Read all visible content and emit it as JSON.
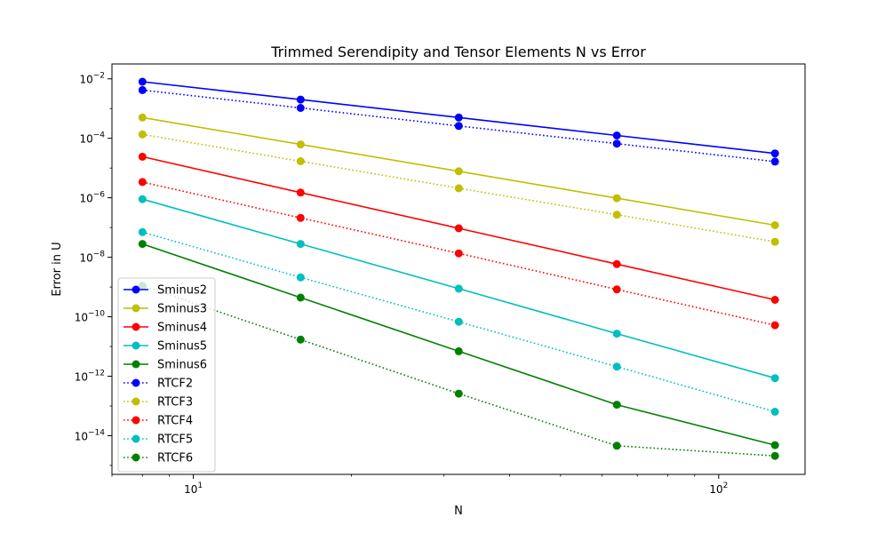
{
  "chart_data": {
    "type": "line",
    "title": "Trimmed Serendipity and Tensor Elements N vs Error",
    "xlabel": "N",
    "ylabel": "Error in U",
    "xscale": "log",
    "yscale": "log",
    "xlim": [
      7.0,
      146
    ],
    "ylim_exp": [
      -15.3,
      -1.5
    ],
    "grid": false,
    "legend_position": "lower-left",
    "x": [
      8,
      16,
      32,
      64,
      128
    ],
    "x_ticks": [
      {
        "value": 10,
        "base": "10",
        "exp": "1"
      },
      {
        "value": 100,
        "base": "10",
        "exp": "2"
      }
    ],
    "y_ticks": [
      {
        "exp": -2,
        "base": "10",
        "label_exp": "−2"
      },
      {
        "exp": -4,
        "base": "10",
        "label_exp": "−4"
      },
      {
        "exp": -6,
        "base": "10",
        "label_exp": "−6"
      },
      {
        "exp": -8,
        "base": "10",
        "label_exp": "−8"
      },
      {
        "exp": -10,
        "base": "10",
        "label_exp": "−10"
      },
      {
        "exp": -12,
        "base": "10",
        "label_exp": "−12"
      },
      {
        "exp": -14,
        "base": "10",
        "label_exp": "−14"
      }
    ],
    "series": [
      {
        "name": "Sminus2",
        "color": "#0000ff",
        "style": "solid",
        "values": [
          0.008,
          0.002,
          0.0005,
          0.000125,
          3.1e-05
        ]
      },
      {
        "name": "Sminus3",
        "color": "#bfbf00",
        "style": "solid",
        "values": [
          0.0005,
          6.2e-05,
          7.8e-06,
          9.7e-07,
          1.2e-07
        ]
      },
      {
        "name": "Sminus4",
        "color": "#ff0000",
        "style": "solid",
        "values": [
          2.4e-05,
          1.5e-06,
          9.4e-08,
          5.9e-09,
          3.7e-10
        ]
      },
      {
        "name": "Sminus5",
        "color": "#00bfbf",
        "style": "solid",
        "values": [
          9e-07,
          2.8e-08,
          8.8e-10,
          2.7e-11,
          8.6e-13
        ]
      },
      {
        "name": "Sminus6",
        "color": "#008000",
        "style": "solid",
        "values": [
          2.8e-08,
          4.4e-10,
          6.9e-12,
          1.1e-13,
          4.8e-15
        ]
      },
      {
        "name": "RTCF2",
        "color": "#0000ff",
        "style": "dotted",
        "values": [
          0.0042,
          0.00105,
          0.00026,
          6.6e-05,
          1.65e-05
        ]
      },
      {
        "name": "RTCF3",
        "color": "#bfbf00",
        "style": "dotted",
        "values": [
          0.000135,
          1.7e-05,
          2.1e-06,
          2.7e-07,
          3.3e-08
        ]
      },
      {
        "name": "RTCF4",
        "color": "#ff0000",
        "style": "dotted",
        "values": [
          3.4e-06,
          2.1e-07,
          1.35e-08,
          8.3e-10,
          5.2e-11
        ]
      },
      {
        "name": "RTCF5",
        "color": "#00bfbf",
        "style": "dotted",
        "values": [
          7e-08,
          2.1e-09,
          6.8e-11,
          2.1e-12,
          6.4e-14
        ]
      },
      {
        "name": "RTCF6",
        "color": "#008000",
        "style": "dotted",
        "values": [
          1.1e-09,
          1.7e-11,
          2.6e-13,
          4.6e-15,
          2.1e-15
        ]
      }
    ]
  }
}
